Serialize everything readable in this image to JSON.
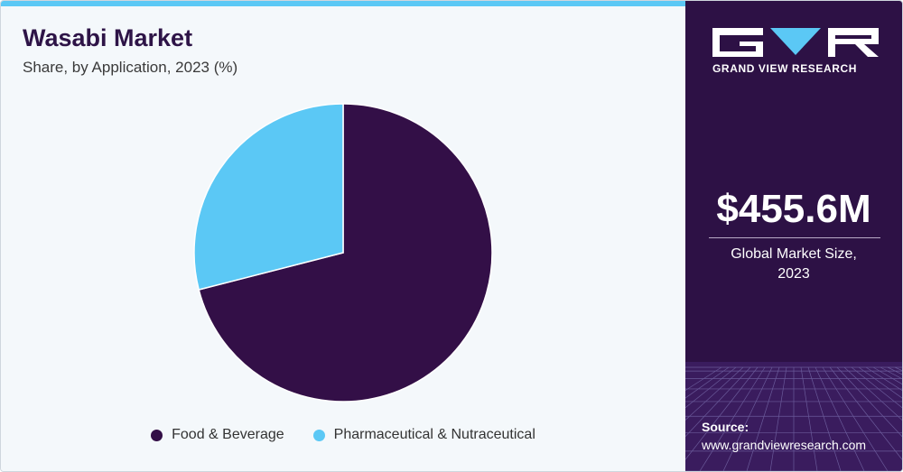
{
  "chart_data": {
    "type": "pie",
    "title": "Wasabi Market",
    "subtitle": "Share, by Application, 2023 (%)",
    "categories": [
      "Food & Beverage",
      "Pharmaceutical & Nutraceutical"
    ],
    "values": [
      71,
      29
    ],
    "colors": [
      "#330f47",
      "#5bc8f5"
    ],
    "legend_position": "bottom"
  },
  "sidebar": {
    "brand": "GRAND VIEW RESEARCH",
    "market_size": "$455.6M",
    "market_size_label": "Global Market Size, 2023",
    "source_label": "Source:",
    "source_url": "www.grandviewresearch.com"
  },
  "colors": {
    "sidebar_bg": "#2d1145",
    "accent": "#5bc8f5"
  }
}
